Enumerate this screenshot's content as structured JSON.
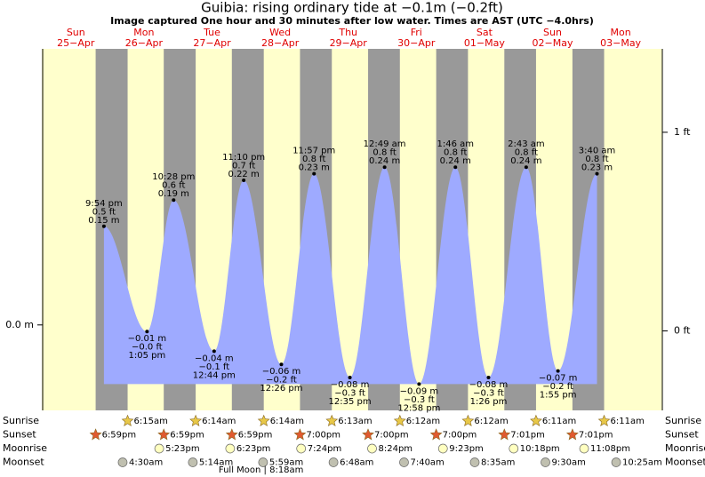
{
  "chart_data": {
    "type": "tide",
    "title": "Guibia: rising  ordinary tide at −0.1m (−0.2ft)",
    "subtitle": "Image captured One hour and 30 minutes after low water. Times are AST (UTC −4.0hrs)",
    "days": [
      {
        "weekday": "Sun",
        "date": "25−Apr"
      },
      {
        "weekday": "Mon",
        "date": "26−Apr"
      },
      {
        "weekday": "Tue",
        "date": "27−Apr"
      },
      {
        "weekday": "Wed",
        "date": "28−Apr"
      },
      {
        "weekday": "Thu",
        "date": "29−Apr"
      },
      {
        "weekday": "Fri",
        "date": "30−Apr"
      },
      {
        "weekday": "Sat",
        "date": "01−May"
      },
      {
        "weekday": "Sun",
        "date": "02−May"
      },
      {
        "weekday": "Mon",
        "date": "03−May"
      }
    ],
    "tides": [
      {
        "date": "25−Apr",
        "time": "9:54 pm",
        "m": 0.15,
        "m_label": "0.15 m",
        "ft": 0.5,
        "ft_label": "0.5 ft"
      },
      {
        "date": "26−Apr",
        "time": "1:05 pm",
        "m": -0.01,
        "m_label": "−0.01 m",
        "ft": 0,
        "ft_label": "−0.0 ft"
      },
      {
        "date": "26−Apr",
        "time": "10:28 pm",
        "m": 0.19,
        "m_label": "0.19 m",
        "ft": 0.6,
        "ft_label": "0.6 ft"
      },
      {
        "date": "27−Apr",
        "time": "12:44 pm",
        "m": -0.04,
        "m_label": "−0.04 m",
        "ft": -0.1,
        "ft_label": "−0.1 ft"
      },
      {
        "date": "27−Apr",
        "time": "11:10 pm",
        "m": 0.22,
        "m_label": "0.22 m",
        "ft": 0.7,
        "ft_label": "0.7 ft"
      },
      {
        "date": "28−Apr",
        "time": "12:26 pm",
        "m": -0.06,
        "m_label": "−0.06 m",
        "ft": -0.2,
        "ft_label": "−0.2 ft"
      },
      {
        "date": "28−Apr",
        "time": "11:57 pm",
        "m": 0.23,
        "m_label": "0.23 m",
        "ft": 0.8,
        "ft_label": "0.8 ft"
      },
      {
        "date": "29−Apr",
        "time": "12:35 pm",
        "m": -0.08,
        "m_label": "−0.08 m",
        "ft": -0.3,
        "ft_label": "−0.3 ft"
      },
      {
        "date": "30−Apr",
        "time": "12:49 am",
        "m": 0.24,
        "m_label": "0.24 m",
        "ft": 0.8,
        "ft_label": "0.8 ft"
      },
      {
        "date": "30−Apr",
        "time": "12:58 pm",
        "m": -0.09,
        "m_label": "−0.09 m",
        "ft": -0.3,
        "ft_label": "−0.3 ft"
      },
      {
        "date": "01−May",
        "time": "1:46 am",
        "m": 0.24,
        "m_label": "0.24 m",
        "ft": 0.8,
        "ft_label": "0.8 ft"
      },
      {
        "date": "01−May",
        "time": "1:26 pm",
        "m": -0.08,
        "m_label": "−0.08 m",
        "ft": -0.3,
        "ft_label": "−0.3 ft"
      },
      {
        "date": "02−May",
        "time": "2:43 am",
        "m": 0.24,
        "m_label": "0.24 m",
        "ft": 0.8,
        "ft_label": "0.8 ft"
      },
      {
        "date": "02−May",
        "time": "1:55 pm",
        "m": -0.07,
        "m_label": "−0.07 m",
        "ft": -0.2,
        "ft_label": "−0.2 ft"
      },
      {
        "date": "03−May",
        "time": "3:40 am",
        "m": 0.23,
        "m_label": "0.23 m",
        "ft": 0.8,
        "ft_label": "0.8 ft"
      }
    ],
    "ylim": [
      -0.13,
      0.42
    ],
    "yticks": [
      {
        "value": 0,
        "label": "0.0 m"
      }
    ],
    "y2lim": [
      -0.4,
      1.42
    ],
    "y2ticks": [
      {
        "value": 0,
        "label": "0 ft"
      },
      {
        "value": 1,
        "label": "1 ft"
      }
    ],
    "fill_color": "#9eaaff",
    "day_color": "#ffffcc",
    "night_color": "#999999",
    "rows": [
      {
        "name": "Sunrise",
        "icon": "star",
        "color": "#e8c848",
        "times": [
          null,
          "6:15am",
          "6:14am",
          "6:14am",
          "6:13am",
          "6:12am",
          "6:12am",
          "6:11am",
          "6:11am"
        ]
      },
      {
        "name": "Sunset",
        "icon": "star",
        "color": "#e05a30",
        "times": [
          "6:59pm",
          "6:59pm",
          "6:59pm",
          "7:00pm",
          "7:00pm",
          "7:00pm",
          "7:01pm",
          "7:01pm",
          null
        ]
      },
      {
        "name": "Moonrise",
        "icon": "circle",
        "color": "#ffffc0",
        "times": [
          null,
          "5:23pm",
          "6:23pm",
          "7:24pm",
          "8:24pm",
          "9:23pm",
          "10:18pm",
          "11:08pm",
          null
        ]
      },
      {
        "name": "Moonset",
        "icon": "circle",
        "color": "#c0c0b0",
        "times": [
          null,
          "4:30am",
          "5:14am",
          "5:59am",
          "6:48am",
          "7:40am",
          "8:35am",
          "9:30am",
          "10:25am"
        ]
      }
    ],
    "moon_phase": {
      "date": "28−Apr",
      "label": "Full Moon | 8:18am"
    }
  }
}
